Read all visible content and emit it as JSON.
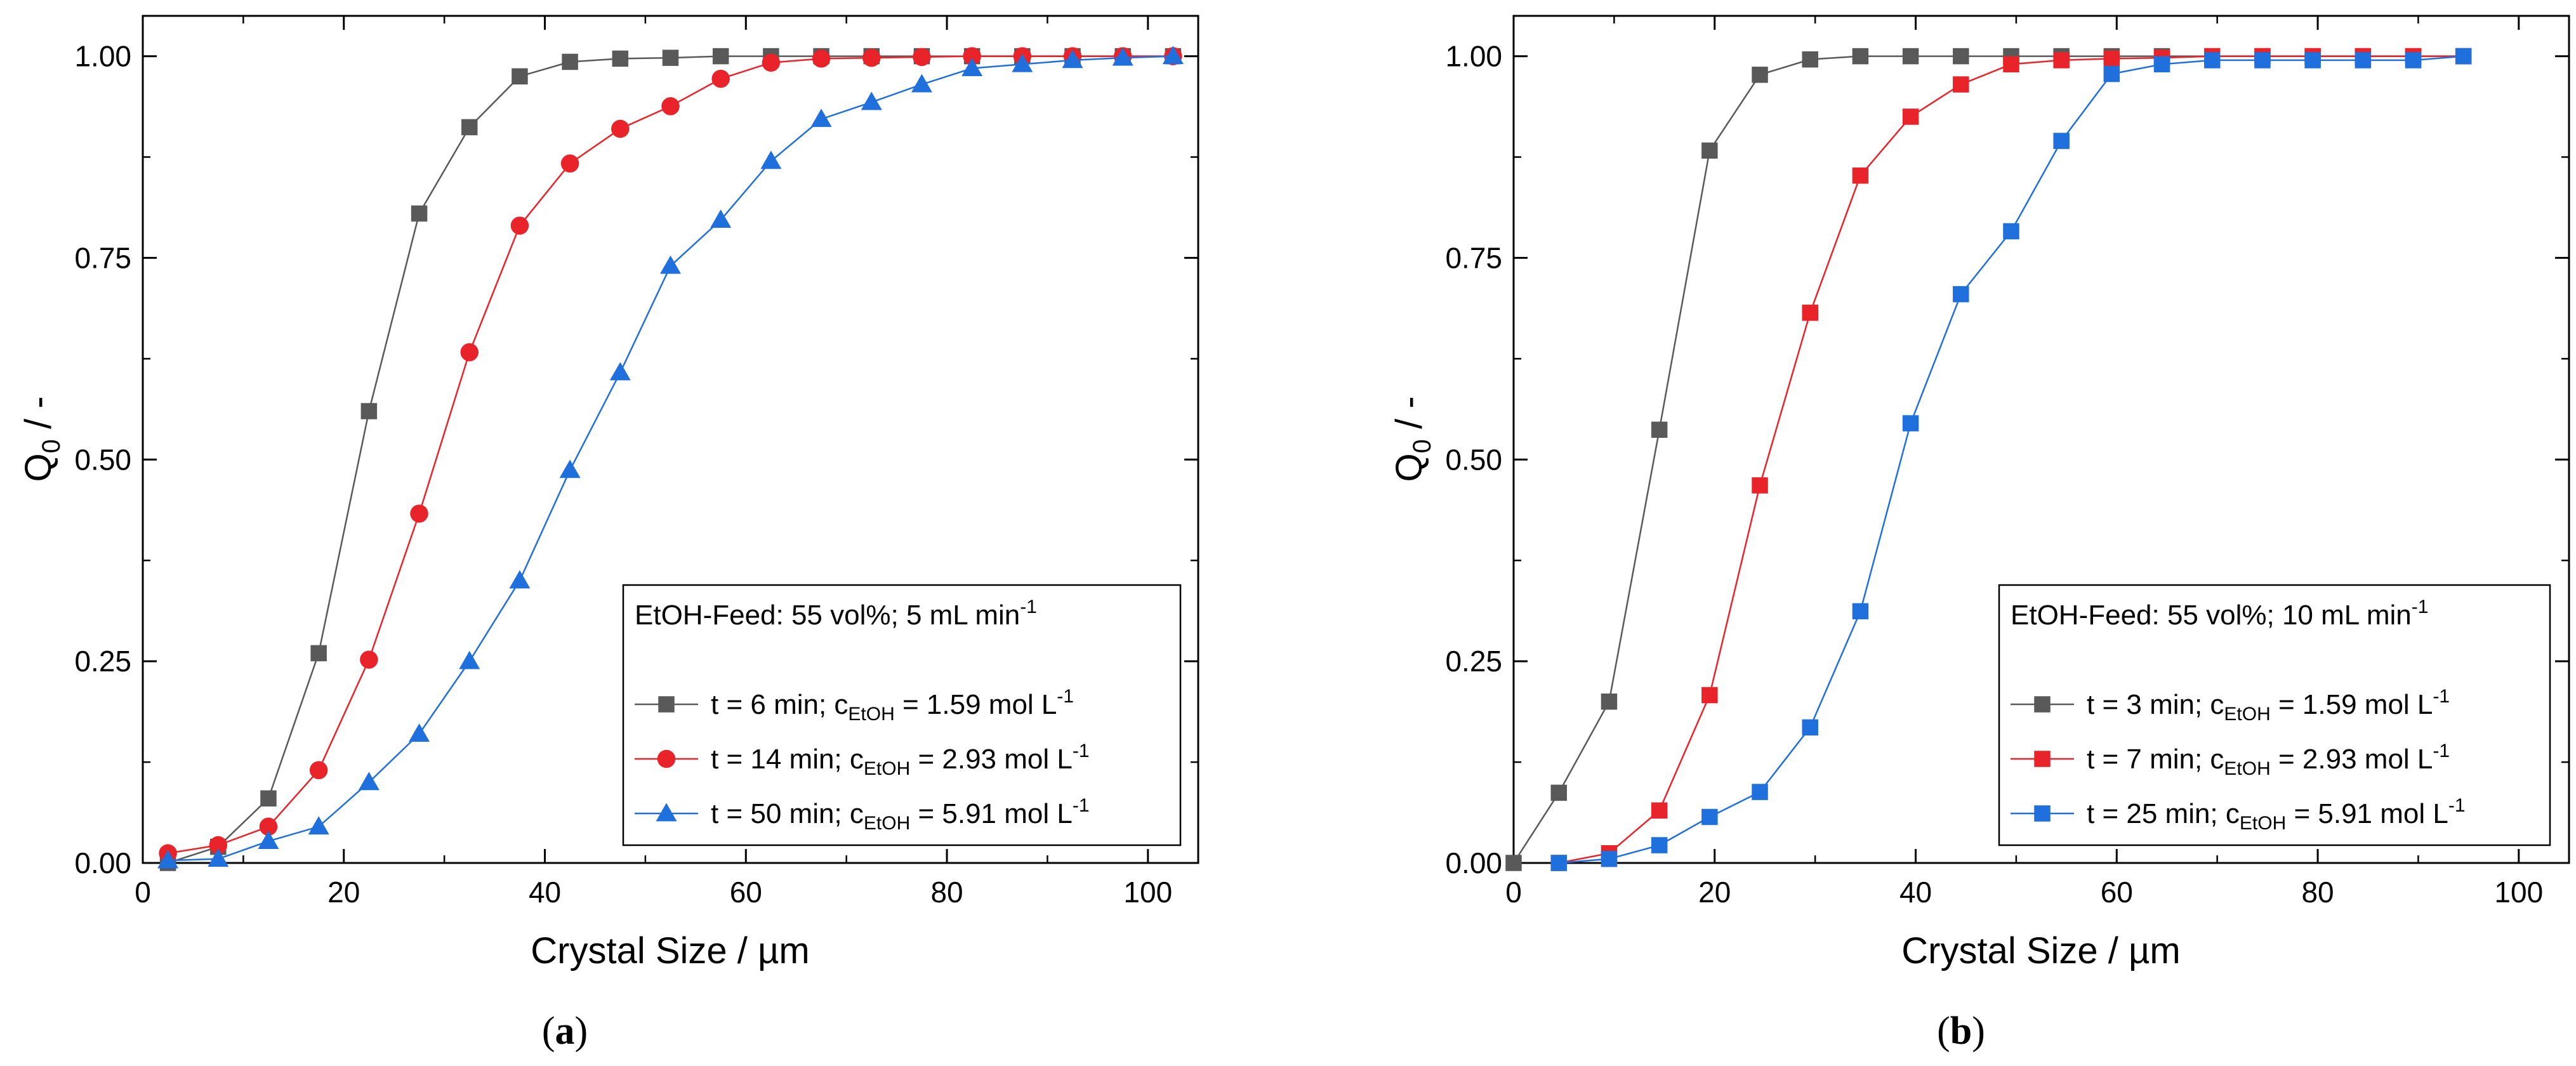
{
  "chart_data": [
    {
      "type": "line",
      "panel": "a",
      "caption": "(a)",
      "caption_letter": "a",
      "xlabel": "Crystal Size / µm",
      "ylabel_main": "Q",
      "ylabel_sub": "0",
      "ylabel_tail": " / -",
      "xlim": [
        0,
        105
      ],
      "ylim": [
        0,
        1.05
      ],
      "xticks": [
        0,
        20,
        40,
        60,
        80,
        100
      ],
      "yticks": [
        0.0,
        0.25,
        0.5,
        0.75,
        1.0
      ],
      "ytick_labels": [
        "0.00",
        "0.25",
        "0.50",
        "0.75",
        "1.00"
      ],
      "legend": {
        "title_main": "EtOH-Feed: 55 vol%; 5 mL min",
        "title_sup": "-1",
        "placement": "lower-right"
      },
      "series": [
        {
          "name": "t = 6 min; cEtOH = 1.59 mol L-1",
          "label_prefix": "t =  6 min; c",
          "label_sub": "EtOH",
          "label_mid": " = 1.59 mol L",
          "label_sup": "-1",
          "color": "#595959",
          "marker": "square",
          "x": [
            2.5,
            7.5,
            12.5,
            17.5,
            22.5,
            27.5,
            32.5,
            37.5,
            42.5,
            47.5,
            52.5,
            57.5,
            62.5,
            67.5,
            72.5,
            77.5,
            82.5,
            87.5,
            92.5,
            97.5,
            102.5
          ],
          "y": [
            0.0,
            0.02,
            0.08,
            0.26,
            0.56,
            0.805,
            0.912,
            0.975,
            0.993,
            0.997,
            0.998,
            1.0,
            1.0,
            1.0,
            1.0,
            1.0,
            1.0,
            1.0,
            1.0,
            1.0,
            1.0
          ]
        },
        {
          "name": "t = 14 min; cEtOH = 2.93 mol L-1",
          "label_prefix": "t =  14 min; c",
          "label_sub": "EtOH",
          "label_mid": " = 2.93 mol L",
          "label_sup": "-1",
          "color": "#e8232a",
          "marker": "circle",
          "x": [
            2.5,
            7.5,
            12.5,
            17.5,
            22.5,
            27.5,
            32.5,
            37.5,
            42.5,
            47.5,
            52.5,
            57.5,
            62.5,
            67.5,
            72.5,
            77.5,
            82.5,
            87.5,
            92.5,
            97.5,
            102.5
          ],
          "y": [
            0.012,
            0.022,
            0.045,
            0.115,
            0.252,
            0.433,
            0.633,
            0.79,
            0.867,
            0.91,
            0.938,
            0.972,
            0.992,
            0.997,
            0.998,
            0.999,
            1.0,
            1.0,
            1.0,
            1.0,
            1.0
          ]
        },
        {
          "name": "t = 50 min; cEtOH = 5.91 mol L-1",
          "label_prefix": "t =  50 min; c",
          "label_sub": "EtOH",
          "label_mid": " = 5.91 mol L",
          "label_sup": "-1",
          "color": "#1f6fdc",
          "marker": "triangle",
          "x": [
            2.5,
            7.5,
            12.5,
            17.5,
            22.5,
            27.5,
            32.5,
            37.5,
            42.5,
            47.5,
            52.5,
            57.5,
            62.5,
            67.5,
            72.5,
            77.5,
            82.5,
            87.5,
            92.5,
            97.5,
            102.5
          ],
          "y": [
            0.003,
            0.005,
            0.027,
            0.045,
            0.1,
            0.16,
            0.25,
            0.35,
            0.487,
            0.608,
            0.74,
            0.797,
            0.87,
            0.922,
            0.943,
            0.965,
            0.985,
            0.99,
            0.995,
            0.998,
            1.0
          ]
        }
      ]
    },
    {
      "type": "line",
      "panel": "b",
      "caption": "(b)",
      "caption_letter": "b",
      "xlabel": "Crystal Size / µm",
      "ylabel_main": "Q",
      "ylabel_sub": "0",
      "ylabel_tail": " / -",
      "xlim": [
        0,
        105
      ],
      "ylim": [
        0,
        1.05
      ],
      "xticks": [
        0,
        20,
        40,
        60,
        80,
        100
      ],
      "yticks": [
        0.0,
        0.25,
        0.5,
        0.75,
        1.0
      ],
      "ytick_labels": [
        "0.00",
        "0.25",
        "0.50",
        "0.75",
        "1.00"
      ],
      "legend": {
        "title_main": "EtOH-Feed: 55 vol%; 10 mL min",
        "title_sup": "-1",
        "placement": "lower-right"
      },
      "series": [
        {
          "name": "t = 3 min; cEtOH = 1.59 mol L-1",
          "label_prefix": "t = 3 min; c",
          "label_sub": "EtOH",
          "label_mid": " = 1.59 mol L",
          "label_sup": "-1",
          "color": "#595959",
          "marker": "square",
          "x": [
            0,
            4.5,
            9.5,
            14.5,
            19.5,
            24.5,
            29.5,
            34.5,
            39.5,
            44.5,
            49.5,
            54.5,
            59.5,
            64.5,
            69.5,
            74.5,
            79.5,
            84.5,
            89.5,
            94.5
          ],
          "y": [
            0.0,
            0.087,
            0.2,
            0.537,
            0.883,
            0.977,
            0.996,
            1.0,
            1.0,
            1.0,
            1.0,
            1.0,
            1.0,
            1.0,
            1.0,
            1.0,
            1.0,
            1.0,
            1.0,
            1.0
          ]
        },
        {
          "name": "t = 7 min; cEtOH = 2.93 mol L-1",
          "label_prefix": "t = 7 min; c",
          "label_sub": "EtOH",
          "label_mid": " =  2.93 mol L",
          "label_sup": "-1",
          "color": "#e8232a",
          "marker": "square",
          "x": [
            4.5,
            9.5,
            14.5,
            19.5,
            24.5,
            29.5,
            34.5,
            39.5,
            44.5,
            49.5,
            54.5,
            59.5,
            64.5,
            69.5,
            74.5,
            79.5,
            84.5,
            89.5,
            94.5
          ],
          "y": [
            0.0,
            0.012,
            0.065,
            0.208,
            0.468,
            0.682,
            0.852,
            0.925,
            0.965,
            0.99,
            0.995,
            0.997,
            0.998,
            1.0,
            1.0,
            1.0,
            1.0,
            1.0,
            1.0
          ]
        },
        {
          "name": "t = 25 min; cEtOH = 5.91 mol L-1",
          "label_prefix": "t = 25 min; c",
          "label_sub": "EtOH",
          "label_mid": " = 5.91 mol L",
          "label_sup": "-1",
          "color": "#1f6fdc",
          "marker": "square",
          "x": [
            4.5,
            9.5,
            14.5,
            19.5,
            24.5,
            29.5,
            34.5,
            39.5,
            44.5,
            49.5,
            54.5,
            59.5,
            64.5,
            69.5,
            74.5,
            79.5,
            84.5,
            89.5,
            94.5
          ],
          "y": [
            0.0,
            0.005,
            0.022,
            0.057,
            0.088,
            0.168,
            0.312,
            0.545,
            0.705,
            0.783,
            0.895,
            0.978,
            0.99,
            0.995,
            0.995,
            0.995,
            0.995,
            0.995,
            1.0
          ]
        }
      ]
    }
  ]
}
